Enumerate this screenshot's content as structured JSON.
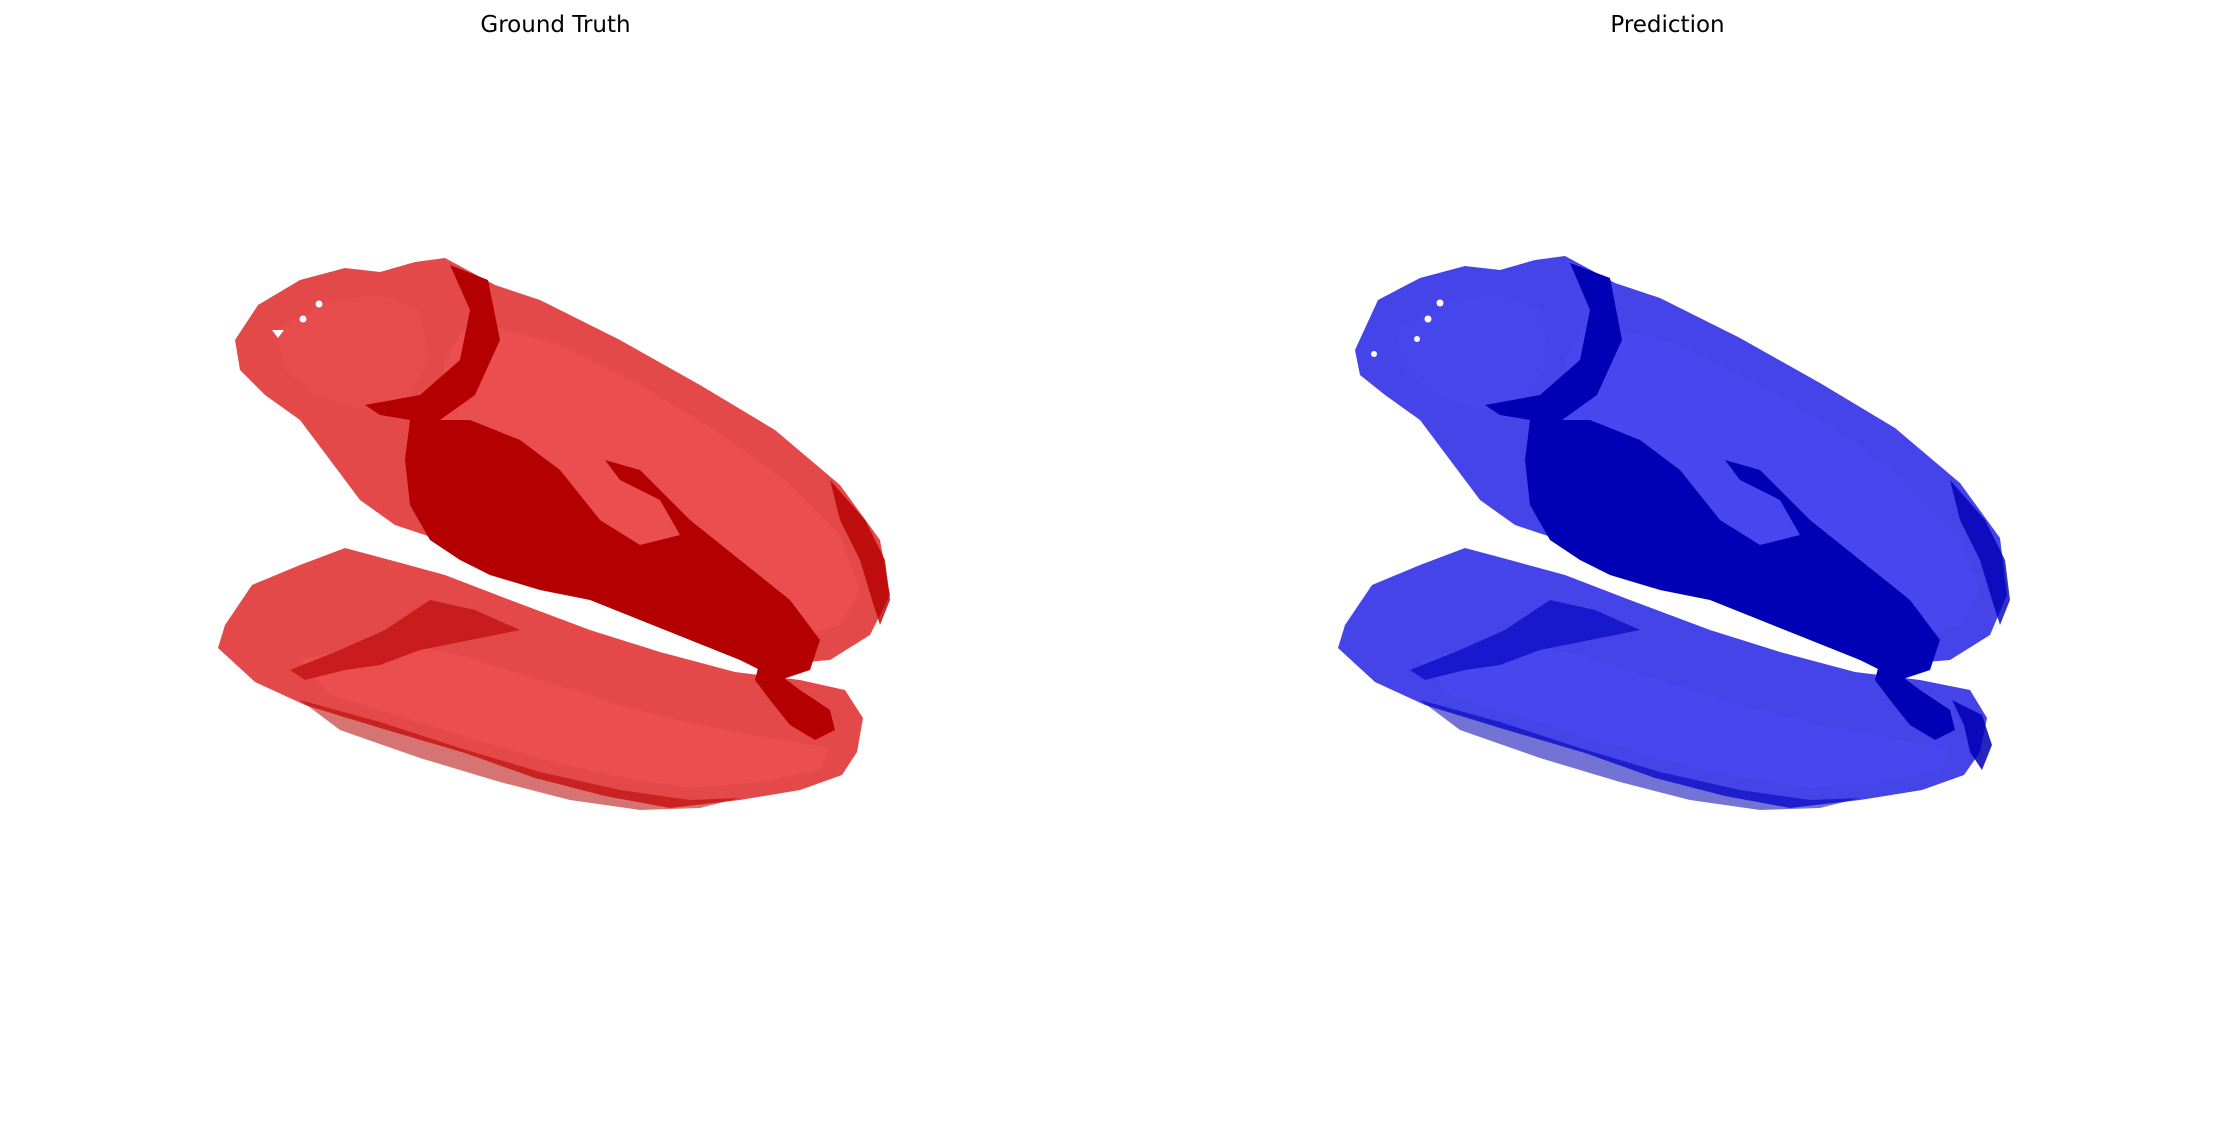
{
  "figure": {
    "panels": [
      {
        "title": "Ground Truth",
        "mesh_color": "red"
      },
      {
        "title": "Prediction",
        "mesh_color": "blue"
      }
    ]
  },
  "colors": {
    "ground_truth_base": "#e23a3a",
    "ground_truth_light": "#ef5252",
    "ground_truth_dark": "#b40000",
    "ground_truth_shadow": "#c41414",
    "prediction_base": "#3434e6",
    "prediction_light": "#4a4af5",
    "prediction_dark": "#0000b4",
    "prediction_shadow": "#1010c8"
  }
}
